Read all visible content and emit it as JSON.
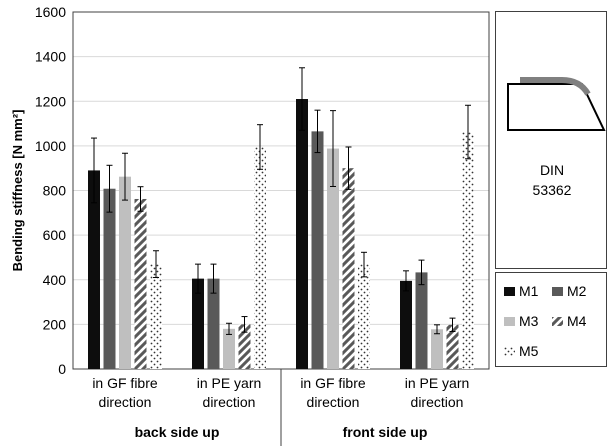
{
  "chart_data": {
    "type": "bar",
    "title": "",
    "ylabel": "Bending stiffness [N mm²]",
    "xlabel": "",
    "ylim": [
      0,
      1600
    ],
    "yticks": [
      0,
      200,
      400,
      600,
      800,
      1000,
      1200,
      1400,
      1600
    ],
    "grid": "horizontal",
    "categories": [
      "in GF fibre\ndirection",
      "in PE yarn\ndirection",
      "in GF fibre\ndirection",
      "in PE yarn\ndirection"
    ],
    "groups": [
      {
        "label": "back side up",
        "categories": [
          0,
          1
        ]
      },
      {
        "label": "front side up",
        "categories": [
          2,
          3
        ]
      }
    ],
    "series": [
      {
        "name": "M1",
        "values": [
          890,
          405,
          1210,
          395
        ],
        "errors": [
          145,
          65,
          140,
          45
        ]
      },
      {
        "name": "M2",
        "values": [
          808,
          405,
          1065,
          433
        ],
        "errors": [
          105,
          65,
          95,
          55
        ]
      },
      {
        "name": "M3",
        "values": [
          862,
          180,
          988,
          178
        ],
        "errors": [
          105,
          25,
          170,
          20
        ]
      },
      {
        "name": "M4",
        "values": [
          762,
          200,
          900,
          198
        ],
        "errors": [
          55,
          35,
          95,
          30
        ]
      },
      {
        "name": "M5",
        "values": [
          470,
          995,
          468,
          1062
        ],
        "errors": [
          60,
          100,
          55,
          120
        ]
      }
    ],
    "legend_placement": "right"
  },
  "colors": {
    "M1": "#0d0d0d",
    "M2": "#595959",
    "M3": "#bfbfbf",
    "M4": "hatched",
    "M5": "dotted"
  },
  "din": {
    "label_line1": "DIN",
    "label_line2": "53362"
  }
}
